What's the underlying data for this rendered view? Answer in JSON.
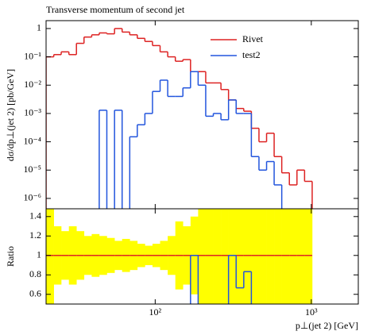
{
  "chart_data": {
    "type": "histogram",
    "title": "Transverse momentum of second jet",
    "y_label": "dσ/dp⊥(jet 2) [pb/GeV]",
    "ratio_label": "Ratio",
    "x_label": "p⊥(jet 2) [GeV]",
    "log_x": true,
    "log_y": true,
    "bins": [
      20,
      22.4,
      25.0,
      28.0,
      31.3,
      35.0,
      39.2,
      43.8,
      49.0,
      54.9,
      61.4,
      68.7,
      76.8,
      85.9,
      96.1,
      107.5,
      120.3,
      134.6,
      150.5,
      168.4,
      188.4,
      210.7,
      235.7,
      263.8,
      295.0,
      330.0,
      369.3,
      413.1,
      462.1,
      517.0,
      578.1,
      646.8,
      723.5,
      809.4,
      905.5,
      1013
    ],
    "series": [
      {
        "name": "Rivet",
        "color": "#dd2222",
        "values": [
          0.1,
          0.12,
          0.15,
          0.12,
          0.3,
          0.5,
          0.6,
          0.7,
          0.65,
          1.0,
          0.75,
          0.6,
          0.45,
          0.35,
          0.25,
          0.15,
          0.1,
          0.07,
          0.08,
          0.03,
          0.03,
          0.012,
          0.012,
          0.007,
          0.003,
          0.0015,
          0.0012,
          0.0003,
          0.0001,
          0.0002,
          3e-05,
          8e-06,
          3e-06,
          1e-05,
          4e-06
        ]
      },
      {
        "name": "test2",
        "color": "#2255dd",
        "values": [
          0,
          0,
          0,
          0,
          0,
          0,
          0,
          0.0013,
          0,
          0.0013,
          0,
          0.00015,
          0.0004,
          0.001,
          0.006,
          0.015,
          0.004,
          0.004,
          0.008,
          0.03,
          0.01,
          0.0008,
          0.001,
          0.0006,
          0.003,
          0.001,
          0.001,
          3e-05,
          1e-05,
          2e-05,
          3e-06,
          0,
          0,
          0,
          0
        ]
      }
    ],
    "ratio_band": {
      "color": "#ffff00",
      "halfwidth": [
        0.6,
        0.3,
        0.25,
        0.3,
        0.25,
        0.2,
        0.22,
        0.2,
        0.18,
        0.15,
        0.17,
        0.15,
        0.12,
        0.1,
        0.12,
        0.15,
        0.2,
        0.35,
        0.3,
        0.4,
        0.5,
        0.6,
        0.6,
        0.6,
        0.6,
        0.6,
        0.6,
        0.6,
        0.6,
        0.6,
        0.6,
        0.6,
        0.6,
        0.6,
        0.6
      ]
    },
    "xlim": [
      20,
      2000
    ],
    "xticks": [
      {
        "value": 100,
        "label": "10²"
      },
      {
        "value": 1000,
        "label": "10³"
      }
    ],
    "ylim": [
      4.3e-07,
      1.9
    ],
    "yticks": [
      1,
      {
        "value": 0.1,
        "label": "10⁻¹"
      },
      {
        "value": 0.01,
        "label": "10⁻²"
      },
      {
        "value": 0.001,
        "label": "10⁻³"
      },
      {
        "value": 0.0001,
        "label": "10⁻⁴"
      },
      {
        "value": 1e-05,
        "label": "10⁻⁵"
      },
      {
        "value": 1e-06,
        "label": "10⁻⁶"
      }
    ],
    "y2lim": [
      0.5,
      1.48
    ],
    "y2ticks": [
      0.6,
      0.8,
      1,
      1.2,
      1.4
    ],
    "legend": "top-right"
  }
}
